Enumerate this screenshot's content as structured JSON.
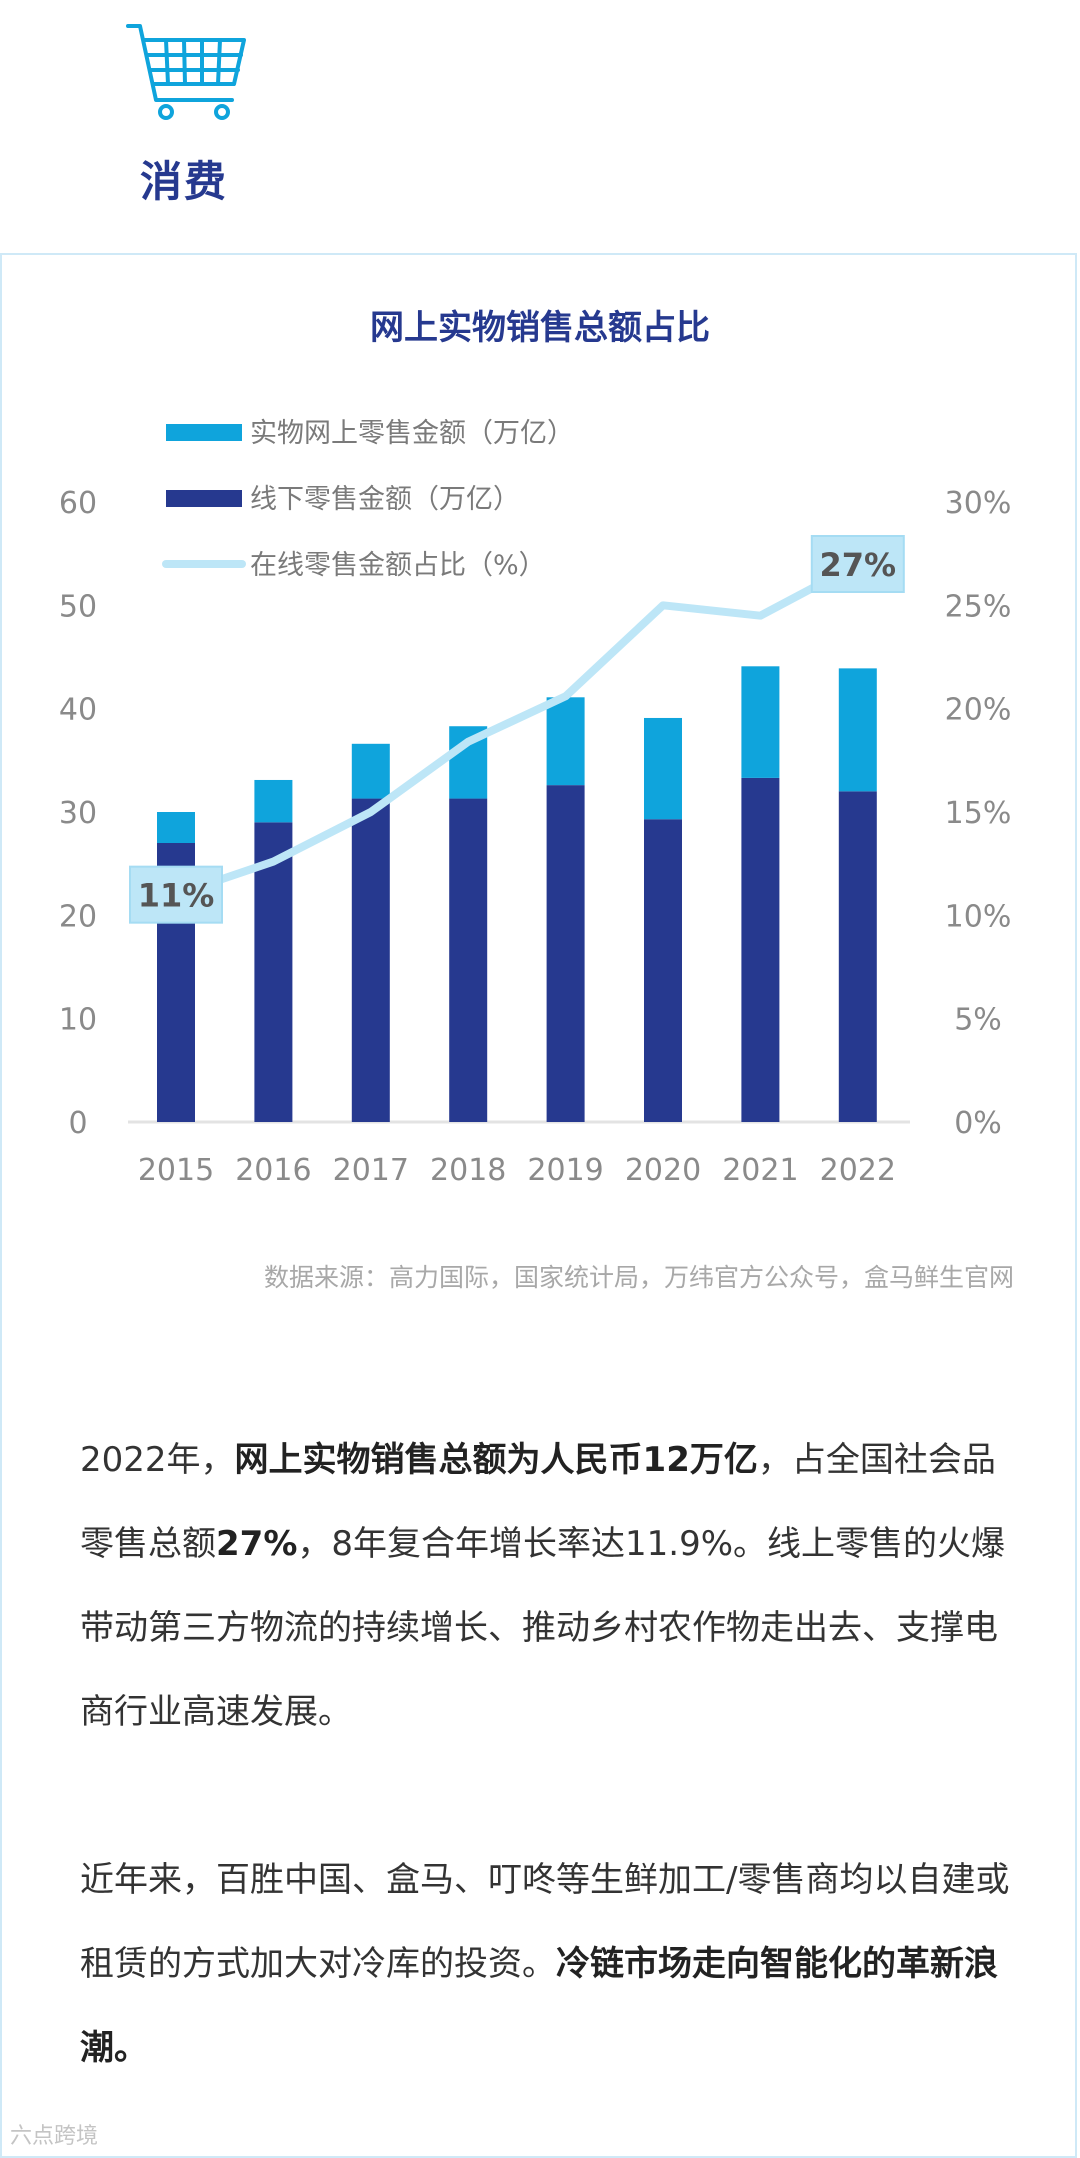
{
  "header": {
    "title": "消费",
    "icon": "shopping-cart-icon"
  },
  "colors": {
    "online": "#0fa4dc",
    "offline": "#26398f",
    "ratio_line": "#bde6f7",
    "title": "#26398f"
  },
  "chart_data": {
    "type": "bar",
    "stacked": true,
    "title": "网上实物销售总额占比",
    "categories": [
      "2015",
      "2016",
      "2017",
      "2018",
      "2019",
      "2020",
      "2021",
      "2022"
    ],
    "series": [
      {
        "name": "线下零售金额（万亿）",
        "values": [
          27,
          29,
          31.3,
          31.3,
          32.6,
          29.3,
          33.3,
          32
        ]
      },
      {
        "name": "实物网上零售金额（万亿）",
        "values": [
          3,
          4.1,
          5.3,
          7,
          8.5,
          9.8,
          10.8,
          11.9
        ]
      },
      {
        "name": "在线零售金额占比（%）",
        "axis": "right",
        "type": "line",
        "values": [
          11,
          12.6,
          15,
          18.4,
          20.6,
          25,
          24.5,
          27
        ]
      }
    ],
    "ylim": [
      0,
      60
    ],
    "yticks": [
      "0",
      "10",
      "20",
      "30",
      "40",
      "50",
      "60"
    ],
    "y2lim": [
      0,
      30
    ],
    "y2ticks": [
      "0%",
      "5%",
      "10%",
      "15%",
      "20%",
      "25%",
      "30%"
    ],
    "legend": [
      "实物网上零售金额（万亿）",
      "线下零售金额（万亿）",
      "在线零售金额占比（%）"
    ],
    "callouts": [
      {
        "index": 0,
        "label": "11%"
      },
      {
        "index": 7,
        "label": "27%"
      }
    ]
  },
  "source_note": "数据来源：高力国际，国家统计局，万纬官方公众号，盒马鲜生官网",
  "paragraph1": {
    "a": "2022年，",
    "b": "网上实物销售总额为人民币12万亿",
    "c": "，占全国社会品零售总额",
    "d": "27%",
    "e": "，8年复合年增长率达11.9%。线上零售的火爆带动第三方物流的持续增长、推动乡村农作物走出去、支撑电商行业高速发展。"
  },
  "paragraph2": {
    "a": "近年来，百胜中国、盒马、叮咚等生鲜加工/零售商均以自建或租赁的方式加大对冷库的投资。",
    "b": "冷链市场走向智能化的革新浪潮。"
  },
  "watermark": "六点跨境"
}
